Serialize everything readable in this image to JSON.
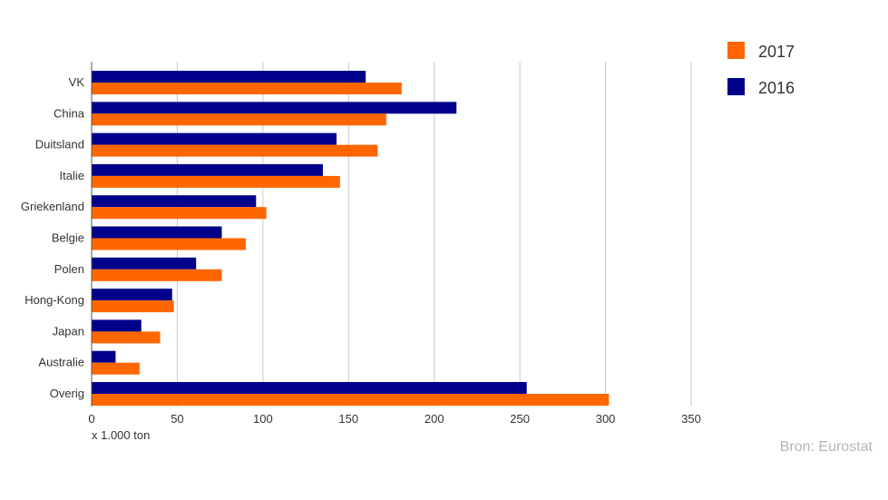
{
  "chart_data": {
    "type": "bar",
    "orientation": "horizontal",
    "categories": [
      "VK",
      "China",
      "Duitsland",
      "Italie",
      "Griekenland",
      "Belgie",
      "Polen",
      "Hong-Kong",
      "Japan",
      "Australie",
      "Overig"
    ],
    "series": [
      {
        "name": "2016",
        "color": "#00008b",
        "values": [
          160,
          213,
          143,
          135,
          96,
          76,
          61,
          47,
          29,
          14,
          254
        ]
      },
      {
        "name": "2017",
        "color": "#ff6600",
        "values": [
          181,
          172,
          167,
          145,
          102,
          90,
          76,
          48,
          40,
          28,
          302
        ]
      }
    ],
    "legend_order": [
      "2017",
      "2016"
    ],
    "legend_position": "top-right",
    "xlim": [
      0,
      350
    ],
    "xticks": [
      0,
      50,
      100,
      150,
      200,
      250,
      300,
      350
    ],
    "x_grid": true,
    "xlabel": "x 1.000 ton",
    "source": "Bron: Eurostat"
  }
}
